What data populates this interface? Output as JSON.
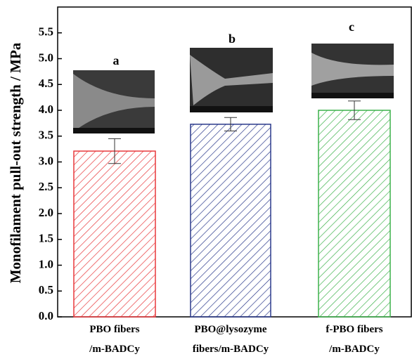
{
  "chart_data": {
    "type": "bar",
    "y_label": "Monofilament pull-out strength / MPa",
    "categories": [
      "PBO fibers\n/m-BADCy",
      "PBO@lysozyme\nfibers/m-BADCy",
      "f-PBO fibers\n/m-BADCy"
    ],
    "values": [
      3.21,
      3.73,
      4.0
    ],
    "errors": [
      0.24,
      0.13,
      0.18
    ],
    "colors": [
      "#e8393c",
      "#2b3a8c",
      "#3db24b"
    ],
    "pattern": "hatch",
    "annotations": [
      "a",
      "b",
      "c"
    ],
    "ylim": [
      0,
      6
    ],
    "yticks": [
      {
        "value": 0,
        "label": "0.0"
      },
      {
        "value": 0.5,
        "label": "0.5"
      },
      {
        "value": 1,
        "label": "1.0"
      },
      {
        "value": 1.5,
        "label": "1.5"
      },
      {
        "value": 2,
        "label": "2.0"
      },
      {
        "value": 2.5,
        "label": "2.5"
      },
      {
        "value": 3,
        "label": "3.0"
      },
      {
        "value": 3.5,
        "label": "3.5"
      },
      {
        "value": 4,
        "label": "4.0"
      },
      {
        "value": 4.5,
        "label": "4.5"
      },
      {
        "value": 5,
        "label": "5.0"
      },
      {
        "value": 5.5,
        "label": "5.5"
      }
    ]
  }
}
